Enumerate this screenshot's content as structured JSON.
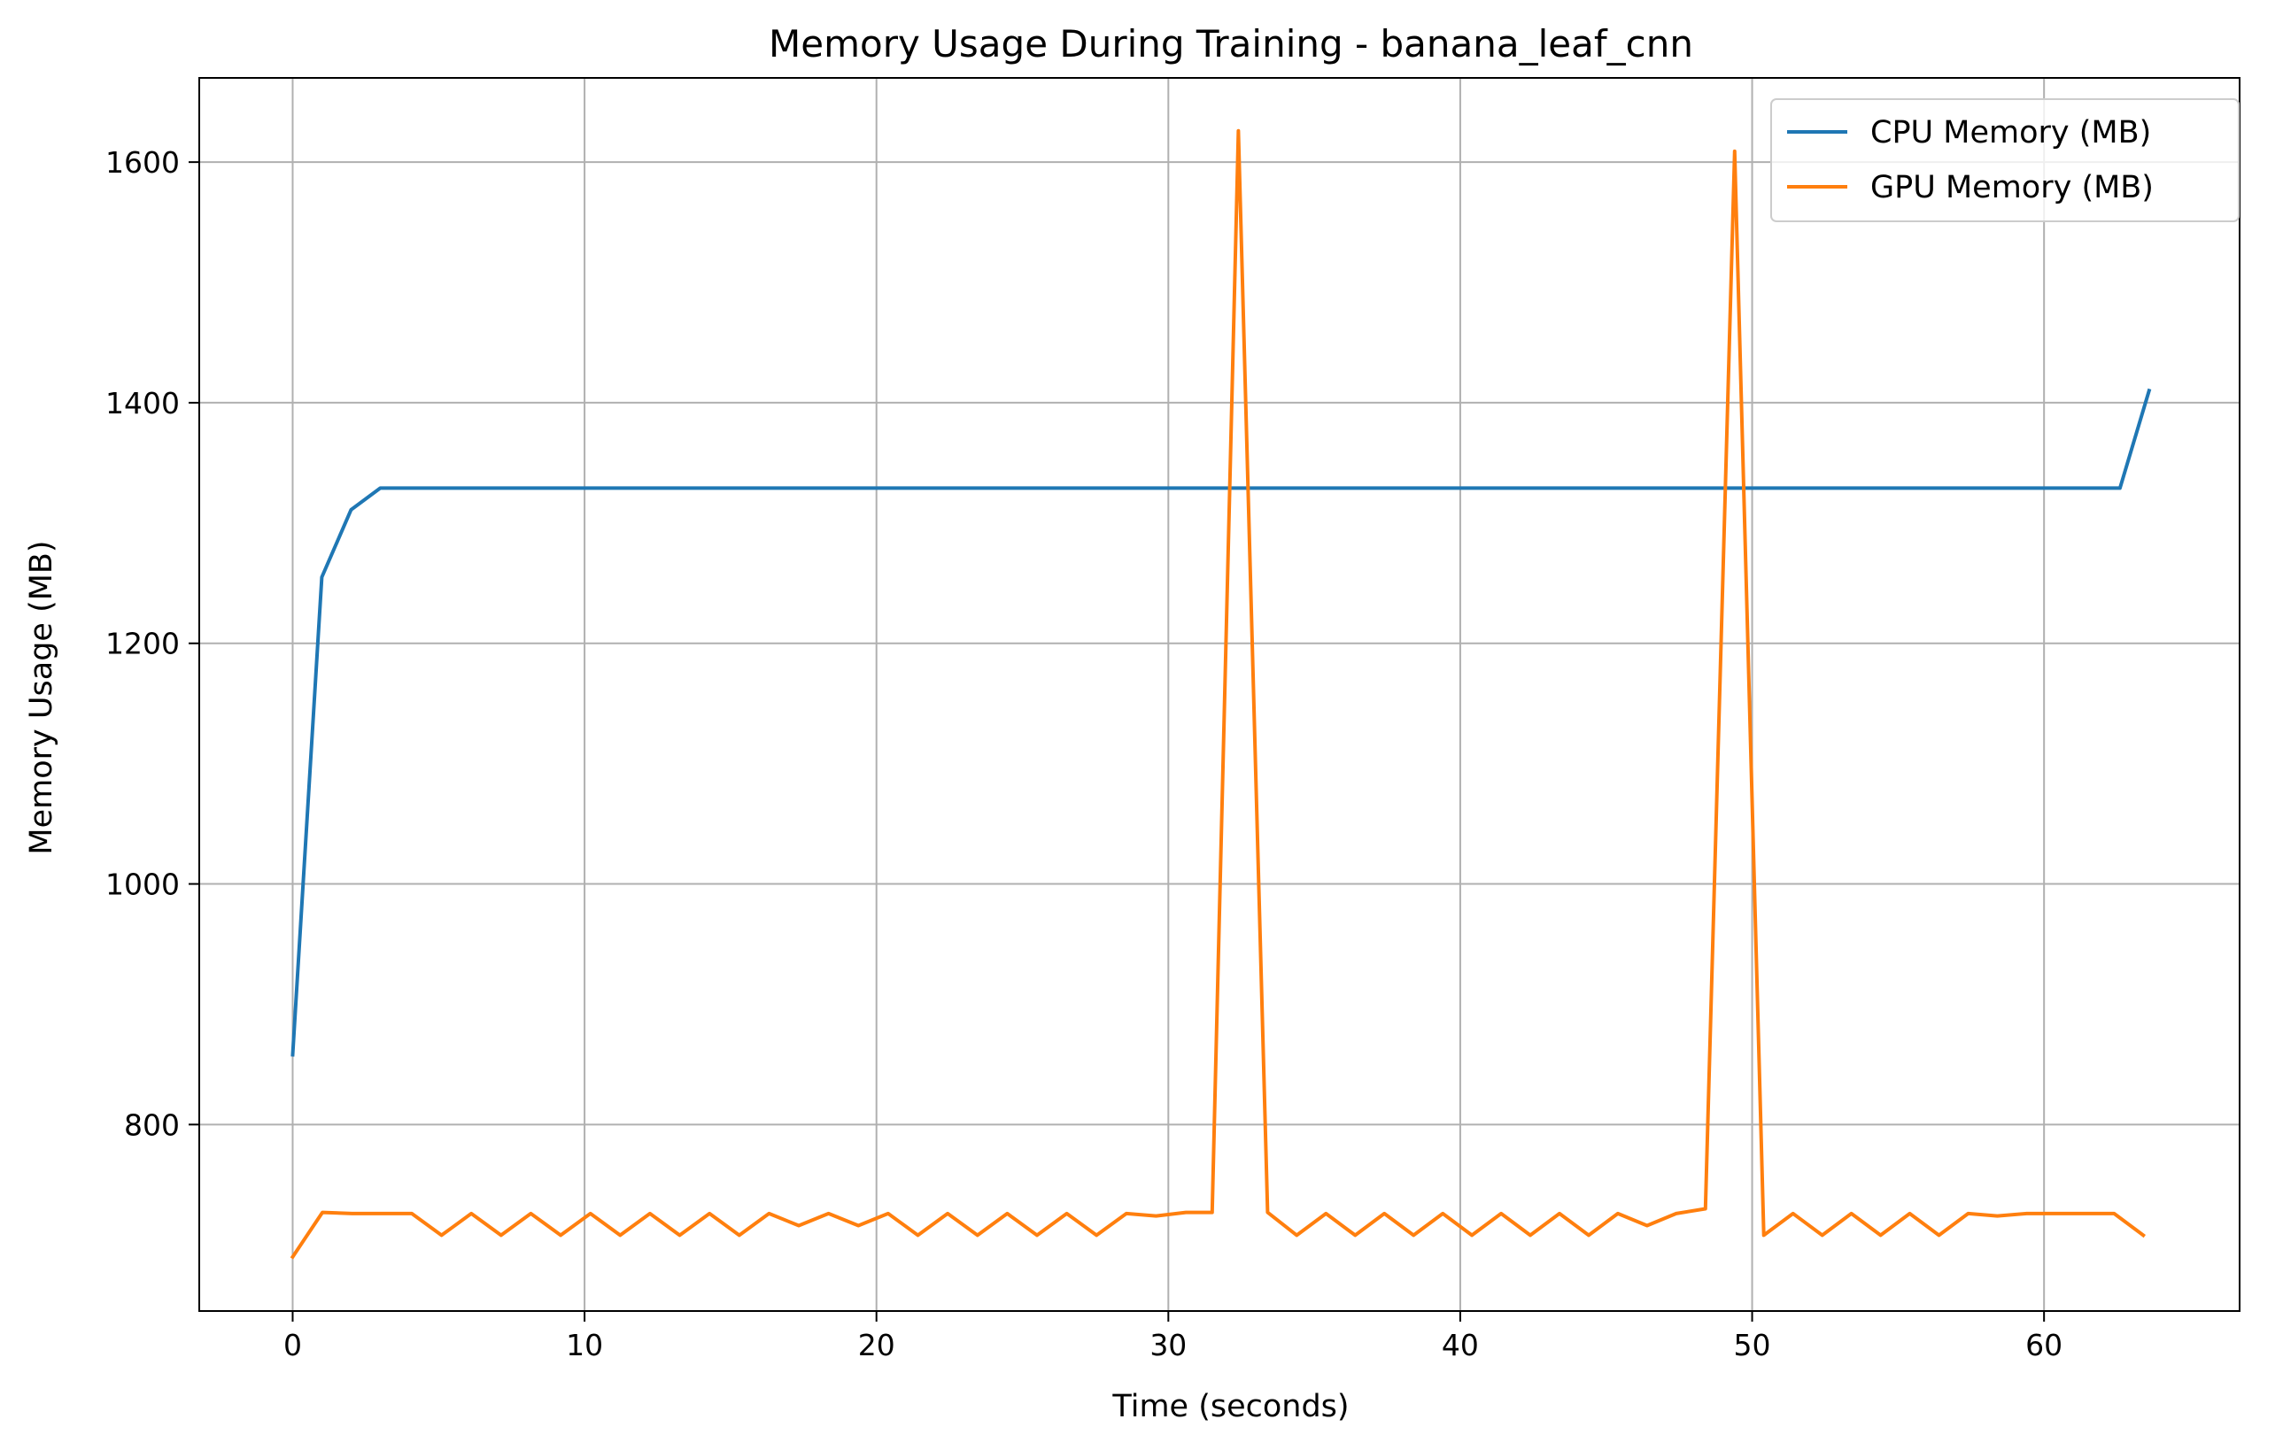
{
  "chart_data": {
    "type": "line",
    "title": "Memory Usage During Training - banana_leaf_cnn",
    "xlabel": "Time (seconds)",
    "ylabel": "Memory Usage (MB)",
    "xlim": [
      -3.2,
      66.7
    ],
    "ylim": [
      645,
      1670
    ],
    "xticks": [
      0,
      10,
      20,
      30,
      40,
      50,
      60
    ],
    "yticks": [
      800,
      1000,
      1200,
      1400,
      1600
    ],
    "grid": true,
    "legend_position": "top-right",
    "series": [
      {
        "name": "CPU Memory (MB)",
        "color": "#1f77b4",
        "x": [
          0,
          1,
          2,
          3,
          10,
          20,
          30,
          40,
          50,
          60,
          62.6,
          63.6
        ],
        "y": [
          858,
          1255,
          1311,
          1329,
          1329,
          1329,
          1329,
          1329,
          1329,
          1329,
          1329,
          1410
        ]
      },
      {
        "name": "GPU Memory (MB)",
        "color": "#ff7f0e",
        "x": [
          0,
          1.02,
          2.04,
          3.06,
          4.08,
          5.1,
          6.12,
          7.14,
          8.16,
          9.18,
          10.2,
          11.22,
          12.24,
          13.26,
          14.28,
          15.3,
          16.32,
          17.34,
          18.36,
          19.38,
          20.4,
          21.42,
          22.44,
          23.46,
          24.48,
          25.5,
          26.52,
          27.54,
          28.56,
          29.58,
          30.6,
          31.5,
          32.4,
          33.4,
          34.4,
          35.4,
          36.4,
          37.4,
          38.4,
          39.4,
          40.4,
          41.4,
          42.4,
          43.4,
          44.4,
          45.4,
          46.4,
          47.4,
          48.4,
          49.4,
          50.4,
          51.4,
          52.4,
          53.4,
          54.4,
          55.4,
          56.4,
          57.4,
          58.4,
          59.4,
          60.4,
          61.4,
          62.4,
          63.4
        ],
        "y": [
          690,
          727,
          726,
          726,
          726,
          708,
          726,
          708,
          726,
          708,
          726,
          708,
          726,
          708,
          726,
          708,
          726,
          716,
          726,
          716,
          726,
          708,
          726,
          708,
          726,
          708,
          726,
          708,
          726,
          724,
          727,
          727,
          1626,
          727,
          708,
          726,
          708,
          726,
          708,
          726,
          708,
          726,
          708,
          726,
          708,
          726,
          716,
          726,
          730,
          1609,
          708,
          726,
          708,
          726,
          708,
          726,
          708,
          726,
          724,
          726,
          726,
          726,
          726,
          708
        ]
      }
    ]
  }
}
